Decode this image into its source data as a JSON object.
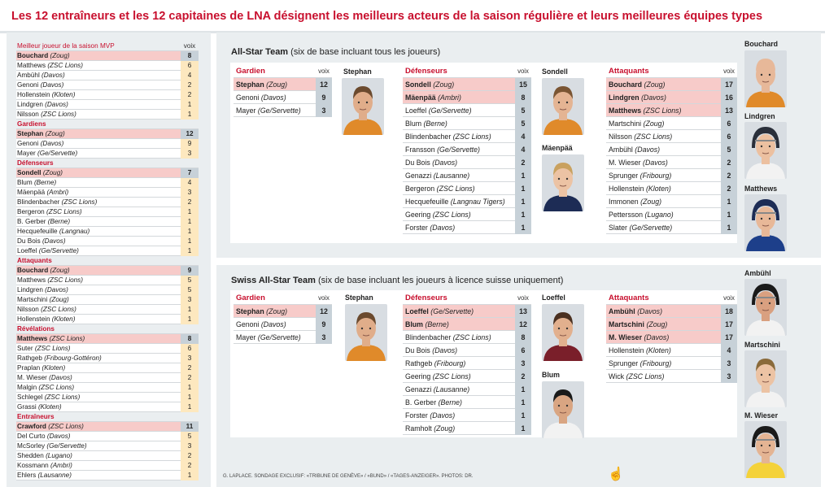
{
  "title": "Les 12 entraîneurs et les 12 capitaines de LNA désignent les meilleurs acteurs de la saison régulière et leurs meilleures équipes types",
  "left_table": {
    "vote_header": "voix",
    "sections": [
      {
        "category": "Meilleur joueur de la saison MVP",
        "rows": [
          {
            "name": "Bouchard",
            "club": "(Zoug)",
            "votes": "8"
          },
          {
            "name": "Matthews",
            "club": "(ZSC Lions)",
            "votes": "6"
          },
          {
            "name": "Ambühl",
            "club": "(Davos)",
            "votes": "4"
          },
          {
            "name": "Genoni",
            "club": "(Davos)",
            "votes": "2"
          },
          {
            "name": "Hollenstein",
            "club": "(Kloten)",
            "votes": "2"
          },
          {
            "name": "Lindgren",
            "club": "(Davos)",
            "votes": "1"
          },
          {
            "name": "Nilsson",
            "club": "(ZSC Lions)",
            "votes": "1"
          }
        ]
      },
      {
        "category": "Gardiens",
        "rows": [
          {
            "name": "Stephan",
            "club": "(Zoug)",
            "votes": "12"
          },
          {
            "name": "Genoni",
            "club": "(Davos)",
            "votes": "9"
          },
          {
            "name": "Mayer",
            "club": "(Ge/Servette)",
            "votes": "3"
          }
        ]
      },
      {
        "category": "Défenseurs",
        "rows": [
          {
            "name": "Sondell",
            "club": "(Zoug)",
            "votes": "7"
          },
          {
            "name": "Blum",
            "club": "(Berne)",
            "votes": "4"
          },
          {
            "name": "Mäenpää",
            "club": "(Ambri)",
            "votes": "3"
          },
          {
            "name": "Blindenbacher",
            "club": "(ZSC Lions)",
            "votes": "2"
          },
          {
            "name": "Bergeron",
            "club": "(ZSC Lions)",
            "votes": "1"
          },
          {
            "name": "B. Gerber",
            "club": "(Berne)",
            "votes": "1"
          },
          {
            "name": "Hecquefeuille",
            "club": "(Langnau)",
            "votes": "1"
          },
          {
            "name": "Du Bois",
            "club": "(Davos)",
            "votes": "1"
          },
          {
            "name": "Loeffel",
            "club": "(Ge/Servette)",
            "votes": "1"
          }
        ]
      },
      {
        "category": "Attaquants",
        "rows": [
          {
            "name": "Bouchard",
            "club": "(Zoug)",
            "votes": "9"
          },
          {
            "name": "Matthews",
            "club": "(ZSC Lions)",
            "votes": "5"
          },
          {
            "name": "Lindgren",
            "club": "(Davos)",
            "votes": "5"
          },
          {
            "name": "Martschini",
            "club": "(Zoug)",
            "votes": "3"
          },
          {
            "name": "Nilsson",
            "club": "(ZSC Lions)",
            "votes": "1"
          },
          {
            "name": "Hollenstein",
            "club": "(Kloten)",
            "votes": "1"
          }
        ]
      },
      {
        "category": "Révélations",
        "rows": [
          {
            "name": "Matthews",
            "club": "(ZSC Lions)",
            "votes": "8"
          },
          {
            "name": "Suter",
            "club": "(ZSC Lions)",
            "votes": "6"
          },
          {
            "name": "Rathgeb",
            "club": "(Fribourg-Gottéron)",
            "votes": "3"
          },
          {
            "name": "Praplan",
            "club": "(Kloten)",
            "votes": "2"
          },
          {
            "name": "M. Wieser",
            "club": "(Davos)",
            "votes": "2"
          },
          {
            "name": "Malgin",
            "club": "(ZSC Lions)",
            "votes": "1"
          },
          {
            "name": "Schlegel",
            "club": "(ZSC Lions)",
            "votes": "1"
          },
          {
            "name": "Grassi",
            "club": "(Kloten)",
            "votes": "1"
          }
        ]
      },
      {
        "category": "Entraîneurs",
        "rows": [
          {
            "name": "Crawford",
            "club": "(ZSC Lions)",
            "votes": "11"
          },
          {
            "name": "Del Curto",
            "club": "(Davos)",
            "votes": "5"
          },
          {
            "name": "McSorley",
            "club": "(Ge/Servette)",
            "votes": "3"
          },
          {
            "name": "Shedden",
            "club": "(Lugano)",
            "votes": "2"
          },
          {
            "name": "Kossmann",
            "club": "(Ambri)",
            "votes": "2"
          },
          {
            "name": "Ehlers",
            "club": "(Lausanne)",
            "votes": "1"
          }
        ]
      }
    ]
  },
  "allstar": {
    "title_bold": "All-Star Team",
    "title_rest": " (six de base incluant tous les joueurs)",
    "vote_header": "voix",
    "gardien": {
      "header": "Gardien",
      "rows": [
        {
          "name": "Stephan",
          "club": "(Zoug)",
          "votes": "12"
        },
        {
          "name": "Genoni",
          "club": "(Davos)",
          "votes": "9"
        },
        {
          "name": "Mayer",
          "club": "(Ge/Servette)",
          "votes": "3"
        }
      ]
    },
    "defenseurs": {
      "header": "Défenseurs",
      "rows": [
        {
          "name": "Sondell",
          "club": "(Zoug)",
          "votes": "15"
        },
        {
          "name": "Mäenpää",
          "club": "(Ambri)",
          "votes": "8"
        },
        {
          "name": "Loeffel",
          "club": "(Ge/Servette)",
          "votes": "5"
        },
        {
          "name": "Blum",
          "club": "(Berne)",
          "votes": "5"
        },
        {
          "name": "Blindenbacher",
          "club": "(ZSC Lions)",
          "votes": "4"
        },
        {
          "name": "Fransson",
          "club": "(Ge/Servette)",
          "votes": "4"
        },
        {
          "name": "Du Bois",
          "club": "(Davos)",
          "votes": "2"
        },
        {
          "name": "Genazzi",
          "club": "(Lausanne)",
          "votes": "1"
        },
        {
          "name": "Bergeron",
          "club": "(ZSC Lions)",
          "votes": "1"
        },
        {
          "name": "Hecquefeuille",
          "club": "(Langnau Tigers)",
          "votes": "1"
        },
        {
          "name": "Geering",
          "club": "(ZSC Lions)",
          "votes": "1"
        },
        {
          "name": "Forster",
          "club": "(Davos)",
          "votes": "1"
        }
      ]
    },
    "attaquants": {
      "header": "Attaquants",
      "rows": [
        {
          "name": "Bouchard",
          "club": "(Zoug)",
          "votes": "17"
        },
        {
          "name": "Lindgren",
          "club": "(Davos)",
          "votes": "16"
        },
        {
          "name": "Matthews",
          "club": "(ZSC Lions)",
          "votes": "13"
        },
        {
          "name": "Martschini",
          "club": "(Zoug)",
          "votes": "6"
        },
        {
          "name": "Nilsson",
          "club": "(ZSC Lions)",
          "votes": "6"
        },
        {
          "name": "Ambühl",
          "club": "(Davos)",
          "votes": "5"
        },
        {
          "name": "M. Wieser",
          "club": "(Davos)",
          "votes": "2"
        },
        {
          "name": "Sprunger",
          "club": "(Fribourg)",
          "votes": "2"
        },
        {
          "name": "Hollenstein",
          "club": "(Kloten)",
          "votes": "2"
        },
        {
          "name": "Immonen",
          "club": "(Zoug)",
          "votes": "1"
        },
        {
          "name": "Pettersson",
          "club": "(Lugano)",
          "votes": "1"
        },
        {
          "name": "Slater",
          "club": "(Ge/Servette)",
          "votes": "1"
        }
      ]
    },
    "photos": {
      "stephan": "Stephan",
      "sondell": "Sondell",
      "maenpaa": "Mäenpää",
      "bouchard": "Bouchard",
      "lindgren": "Lindgren",
      "matthews": "Matthews"
    }
  },
  "swiss": {
    "title_bold": "Swiss All-Star Team",
    "title_rest": " (six de base incluant les joueurs à licence suisse uniquement)",
    "vote_header": "voix",
    "gardien": {
      "header": "Gardien",
      "rows": [
        {
          "name": "Stephan",
          "club": "(Zoug)",
          "votes": "12"
        },
        {
          "name": "Genoni",
          "club": "(Davos)",
          "votes": "9"
        },
        {
          "name": "Mayer",
          "club": "(Ge/Servette)",
          "votes": "3"
        }
      ]
    },
    "defenseurs": {
      "header": "Défenseurs",
      "rows": [
        {
          "name": "Loeffel",
          "club": "(Ge/Servette)",
          "votes": "13"
        },
        {
          "name": "Blum",
          "club": "(Berne)",
          "votes": "12"
        },
        {
          "name": "Blindenbacher",
          "club": "(ZSC Lions)",
          "votes": "8"
        },
        {
          "name": "Du Bois",
          "club": "(Davos)",
          "votes": "6"
        },
        {
          "name": "Rathgeb",
          "club": "(Fribourg)",
          "votes": "3"
        },
        {
          "name": "Geering",
          "club": "(ZSC Lions)",
          "votes": "2"
        },
        {
          "name": "Genazzi",
          "club": "(Lausanne)",
          "votes": "1"
        },
        {
          "name": "B. Gerber",
          "club": "(Berne)",
          "votes": "1"
        },
        {
          "name": "Forster",
          "club": "(Davos)",
          "votes": "1"
        },
        {
          "name": "Ramholt",
          "club": "(Zoug)",
          "votes": "1"
        }
      ]
    },
    "attaquants": {
      "header": "Attaquants",
      "rows": [
        {
          "name": "Ambühl",
          "club": "(Davos)",
          "votes": "18"
        },
        {
          "name": "Martschini",
          "club": "(Zoug)",
          "votes": "17"
        },
        {
          "name": "M. Wieser",
          "club": "(Davos)",
          "votes": "17"
        },
        {
          "name": "Hollenstein",
          "club": "(Kloten)",
          "votes": "4"
        },
        {
          "name": "Sprunger",
          "club": "(Fribourg)",
          "votes": "3"
        },
        {
          "name": "Wick",
          "club": "(ZSC Lions)",
          "votes": "3"
        }
      ]
    },
    "photos": {
      "stephan": "Stephan",
      "loeffel": "Loeffel",
      "blum": "Blum",
      "ambuhl": "Ambühl",
      "martschini": "Martschini",
      "wieser": "M. Wieser"
    }
  },
  "credit": "G. LAPLACE. SONDAGE EXCLUSIF: «TRIBUNE DE GENÈVE» / «BUND» / «TAGES-ANZEIGER». PHOTOS: DR.",
  "cursor_icon": "hand-pointer-icon",
  "colors": {
    "accent": "#c8102e",
    "highlight_row": "#f7cbc9",
    "vote_cell": "#c7d1d8",
    "vote_cell_left": "#fde8bf",
    "panel_bg": "#eaeef0"
  }
}
